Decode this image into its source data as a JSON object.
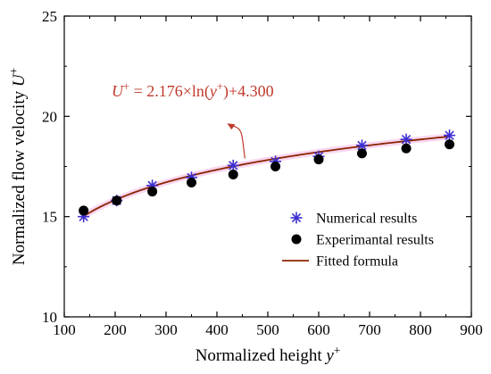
{
  "chart_data": {
    "type": "scatter",
    "title": "",
    "xlabel": {
      "main": "Normalized height ",
      "var": "y",
      "sup": "+"
    },
    "ylabel": {
      "main": "Normalized flow velocity ",
      "var": "U",
      "sup": "+"
    },
    "xlim": [
      100,
      900
    ],
    "ylim": [
      10,
      25
    ],
    "x_major_ticks": [
      100,
      200,
      300,
      400,
      500,
      600,
      700,
      800,
      900
    ],
    "x_tick_labels": [
      "100",
      "200",
      "300",
      "400",
      "500",
      "600",
      "700",
      "800",
      "900"
    ],
    "y_major_ticks": [
      10,
      15,
      20,
      25
    ],
    "y_tick_labels": [
      "10",
      "15",
      "20",
      "25"
    ],
    "grid": false,
    "legend_position": "bottom-right",
    "series": [
      {
        "name": "Numerical results",
        "marker": "asterisk",
        "color": "#3b2fd1",
        "x": [
          138,
          203,
          273,
          350,
          432,
          515,
          600,
          685,
          772,
          857
        ],
        "y": [
          15.0,
          15.8,
          16.55,
          16.95,
          17.55,
          17.75,
          18.0,
          18.55,
          18.85,
          19.05
        ]
      },
      {
        "name": "Experimantal results",
        "marker": "circle",
        "color": "#000000",
        "x": [
          138,
          203,
          273,
          350,
          432,
          515,
          600,
          685,
          772,
          857
        ],
        "y": [
          15.3,
          15.8,
          16.25,
          16.7,
          17.1,
          17.5,
          17.85,
          18.15,
          18.4,
          18.6
        ]
      },
      {
        "name": "Fitted formula",
        "type": "line",
        "color": "#8b2500",
        "formula": {
          "a": 2.176,
          "b": 4.3
        },
        "x_range": [
          138,
          857
        ]
      }
    ],
    "annotation": {
      "parts": [
        {
          "t": "U",
          "style": "italic"
        },
        {
          "t": "+",
          "style": "sup"
        },
        {
          "t": " = 2.176×ln(",
          "style": "normal"
        },
        {
          "t": "y",
          "style": "italic"
        },
        {
          "t": "+",
          "style": "sup"
        },
        {
          "t": ")+4.300",
          "style": "normal"
        }
      ],
      "color": "#c0392b",
      "arrow_to": [
        420,
        19.65
      ],
      "arrow_from": [
        455,
        17.9
      ]
    }
  }
}
